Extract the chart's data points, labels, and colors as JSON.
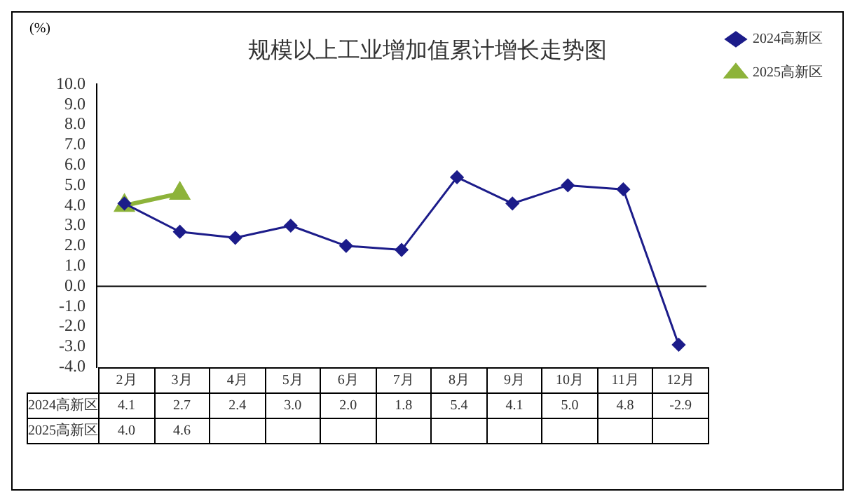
{
  "chart_data": {
    "type": "line",
    "title": "规模以上工业增加值累计增长走势图",
    "ylabel": "(%)",
    "categories": [
      "2月",
      "3月",
      "4月",
      "5月",
      "6月",
      "7月",
      "8月",
      "9月",
      "10月",
      "11月",
      "12月"
    ],
    "series": [
      {
        "name": "2024高新区",
        "color": "#1c1c8a",
        "marker": "diamond",
        "values": [
          4.1,
          2.7,
          2.4,
          3.0,
          2.0,
          1.8,
          5.4,
          4.1,
          5.0,
          4.8,
          -2.9
        ],
        "value_labels": [
          "4.1",
          "2.7",
          "2.4",
          "3.0",
          "2.0",
          "1.8",
          "5.4",
          "4.1",
          "5.0",
          "4.8",
          "-2.9"
        ]
      },
      {
        "name": "2025高新区",
        "color": "#8db33a",
        "marker": "triangle",
        "values": [
          4.0,
          4.6,
          null,
          null,
          null,
          null,
          null,
          null,
          null,
          null,
          null
        ],
        "value_labels": [
          "4.0",
          "4.6",
          null,
          null,
          null,
          null,
          null,
          null,
          null,
          null,
          null
        ]
      }
    ],
    "ylim": [
      -4,
      10
    ],
    "yticks": [
      {
        "value": -4,
        "label": "-4.0"
      },
      {
        "value": -3,
        "label": "-3.0"
      },
      {
        "value": -2,
        "label": "-2.0"
      },
      {
        "value": -1,
        "label": "-1.0"
      },
      {
        "value": 0,
        "label": "0.0"
      },
      {
        "value": 1,
        "label": "1.0"
      },
      {
        "value": 2,
        "label": "2.0"
      },
      {
        "value": 3,
        "label": "3.0"
      },
      {
        "value": 4,
        "label": "4.0"
      },
      {
        "value": 5,
        "label": "5.0"
      },
      {
        "value": 6,
        "label": "6.0"
      },
      {
        "value": 7,
        "label": "7.0"
      },
      {
        "value": 8,
        "label": "8.0"
      },
      {
        "value": 9,
        "label": "9.0"
      },
      {
        "value": 10,
        "label": "10.0"
      }
    ],
    "ref_lines": [
      {
        "axis": "y",
        "value": 0,
        "color": "#000000"
      }
    ],
    "grid": false,
    "legend": "top right",
    "line_style": "solid"
  }
}
